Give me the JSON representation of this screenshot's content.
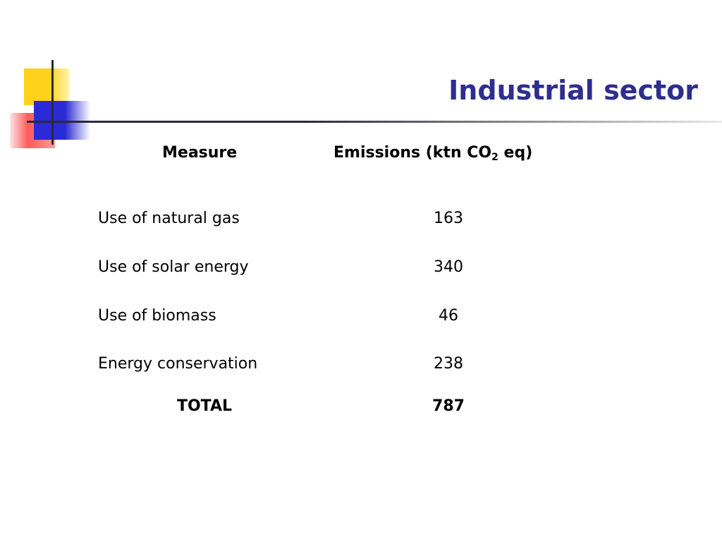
{
  "slide": {
    "title": "Industrial sector"
  },
  "table": {
    "headers": {
      "measure": "Measure",
      "emissions_prefix": "Emissions (ktn CO",
      "emissions_subscript": "2",
      "emissions_suffix": " eq)"
    },
    "rows": [
      {
        "measure": "Use of natural gas",
        "value": "163"
      },
      {
        "measure": "Use of solar energy",
        "value": "340"
      },
      {
        "measure": "Use of biomass",
        "value": "46"
      },
      {
        "measure": "Energy conservation",
        "value": "238"
      }
    ],
    "total": {
      "label": "TOTAL",
      "value": "787"
    }
  },
  "colors": {
    "title": "#2e2e8f",
    "accent_yellow": "#ffd11a",
    "accent_blue": "#2a2ad6",
    "accent_red": "#ff5a5a"
  }
}
